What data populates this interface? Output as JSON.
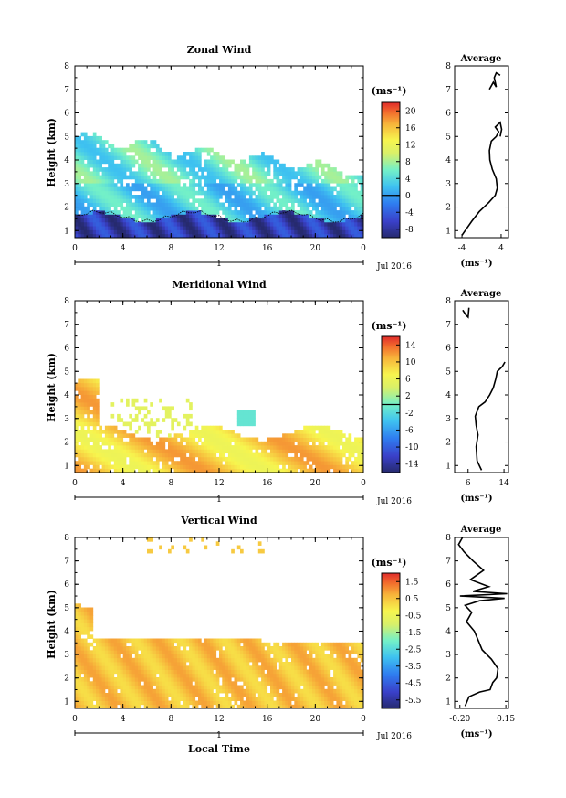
{
  "chart_data": [
    {
      "type": "heatmap",
      "title": "Zonal Wind",
      "ylabel": "Height (km)",
      "xticks": [
        "0",
        "4",
        "8",
        "12",
        "16",
        "20",
        "0"
      ],
      "yticks": [
        "1",
        "2",
        "3",
        "4",
        "5",
        "6",
        "7",
        "8"
      ],
      "xlim": [
        0,
        24
      ],
      "ylim": [
        0.7,
        8.0
      ],
      "day_label": "1",
      "month_label": "Jul 2016",
      "colorbar": {
        "unit": "(ms⁻¹)",
        "ticks": [
          "20",
          "16",
          "12",
          "8",
          "4",
          "0",
          "-4",
          "-8"
        ],
        "range": [
          -10,
          22
        ],
        "zero_line": 0
      },
      "field_description": "Mostly 0 to 8 ms-1 (light blue/cyan) between 1.8 and 5 km; -4 to -10 ms-1 (dark blue) below ~1.8 km; data top decreases from ~5 km at 0 LT to ~3.5 km by 24 LT",
      "profile": {
        "title": "Average",
        "xunit": "(ms⁻¹)",
        "xticks": [
          "-4",
          "4"
        ],
        "xlim": [
          -5.5,
          5.5
        ],
        "points": [
          [
            -4.0,
            0.8
          ],
          [
            -3.0,
            1.1
          ],
          [
            -2.0,
            1.4
          ],
          [
            -0.5,
            1.8
          ],
          [
            1.5,
            2.2
          ],
          [
            2.8,
            2.5
          ],
          [
            3.2,
            2.8
          ],
          [
            3.0,
            3.2
          ],
          [
            2.2,
            3.6
          ],
          [
            1.7,
            4.0
          ],
          [
            1.6,
            4.4
          ],
          [
            2.0,
            4.8
          ],
          [
            3.0,
            5.0
          ],
          [
            3.5,
            5.2
          ],
          [
            2.8,
            5.4
          ],
          [
            3.8,
            5.6
          ],
          [
            4.1,
            5.3
          ],
          [
            3.8,
            5.0
          ]
        ],
        "upper_points": [
          [
            1.6,
            7.0
          ],
          [
            2.4,
            7.3
          ],
          [
            3.0,
            7.1
          ],
          [
            2.6,
            7.5
          ],
          [
            3.0,
            7.7
          ],
          [
            3.8,
            7.6
          ]
        ]
      }
    },
    {
      "type": "heatmap",
      "title": "Meridional Wind",
      "ylabel": "Height (km)",
      "xticks": [
        "0",
        "4",
        "8",
        "12",
        "16",
        "20",
        "0"
      ],
      "yticks": [
        "1",
        "2",
        "3",
        "4",
        "5",
        "6",
        "7",
        "8"
      ],
      "xlim": [
        0,
        24
      ],
      "ylim": [
        0.7,
        8.0
      ],
      "day_label": "1",
      "month_label": "Jul 2016",
      "colorbar": {
        "unit": "(ms⁻¹)",
        "ticks": [
          "14",
          "10",
          "6",
          "2",
          "-2",
          "-6",
          "-10",
          "-14"
        ],
        "range": [
          -16,
          16
        ],
        "zero_line": 0
      },
      "field_description": "Mostly 6 to 14 ms-1 (orange/red) below ~2.5 km and up to ~4.5 km near 0 LT; small cyan patch (~-1 ms-1) around 14-15 LT at 3 km",
      "profile": {
        "title": "Average",
        "xunit": "(ms⁻¹)",
        "xticks": [
          "6",
          "14"
        ],
        "xlim": [
          3,
          15
        ],
        "points": [
          [
            9.0,
            0.8
          ],
          [
            8.0,
            1.2
          ],
          [
            7.8,
            1.8
          ],
          [
            8.2,
            2.3
          ],
          [
            7.8,
            2.7
          ],
          [
            7.6,
            3.1
          ],
          [
            8.4,
            3.5
          ],
          [
            9.8,
            3.7
          ],
          [
            10.8,
            4.0
          ],
          [
            11.6,
            4.3
          ],
          [
            12.2,
            4.7
          ],
          [
            12.5,
            5.0
          ],
          [
            13.6,
            5.2
          ],
          [
            14.2,
            5.4
          ]
        ],
        "upper_points": [
          [
            4.8,
            7.6
          ],
          [
            5.5,
            7.4
          ],
          [
            6.0,
            7.3
          ],
          [
            6.2,
            7.7
          ]
        ]
      }
    },
    {
      "type": "heatmap",
      "title": "Vertical Wind",
      "ylabel": "Height (km)",
      "xlabel": "Local Time",
      "xticks": [
        "0",
        "4",
        "8",
        "12",
        "16",
        "20",
        "0"
      ],
      "yticks": [
        "1",
        "2",
        "3",
        "4",
        "5",
        "6",
        "7",
        "8"
      ],
      "xlim": [
        0,
        24
      ],
      "ylim": [
        0.7,
        8.0
      ],
      "day_label": "1",
      "month_label": "Jul 2016",
      "colorbar": {
        "unit": "(ms⁻¹)",
        "ticks": [
          "1.5",
          "0.5",
          "-0.5",
          "-1.5",
          "-2.5",
          "-3.5",
          "-4.5",
          "-5.5"
        ],
        "range": [
          -6.0,
          2.0
        ]
      },
      "field_description": "Mostly 0.2 to 1.0 ms-1 (yellow/orange) below ~3.7 km; data top ~5.2 km near 0 LT; sparse yellow points near 7.5-8 km",
      "profile": {
        "title": "Average",
        "xunit": "(ms⁻¹)",
        "xticks": [
          "-0.20",
          "0.15"
        ],
        "xlim": [
          -0.24,
          0.17
        ],
        "points": [
          [
            -0.16,
            0.8
          ],
          [
            -0.13,
            1.2
          ],
          [
            -0.05,
            1.4
          ],
          [
            0.03,
            1.5
          ],
          [
            0.05,
            1.8
          ],
          [
            0.08,
            2.0
          ],
          [
            0.09,
            2.4
          ],
          [
            0.04,
            2.8
          ],
          [
            -0.03,
            3.2
          ],
          [
            -0.06,
            3.6
          ],
          [
            -0.09,
            4.0
          ],
          [
            -0.15,
            4.4
          ],
          [
            -0.11,
            4.8
          ],
          [
            -0.16,
            5.1
          ],
          [
            -0.05,
            5.3
          ],
          [
            0.14,
            5.4
          ],
          [
            -0.2,
            5.5
          ],
          [
            0.16,
            5.6
          ],
          [
            -0.1,
            5.7
          ],
          [
            0.02,
            5.9
          ],
          [
            -0.12,
            6.2
          ],
          [
            -0.02,
            6.6
          ],
          [
            -0.1,
            7.0
          ],
          [
            -0.17,
            7.4
          ],
          [
            -0.21,
            7.7
          ],
          [
            -0.18,
            8.0
          ]
        ]
      }
    }
  ]
}
